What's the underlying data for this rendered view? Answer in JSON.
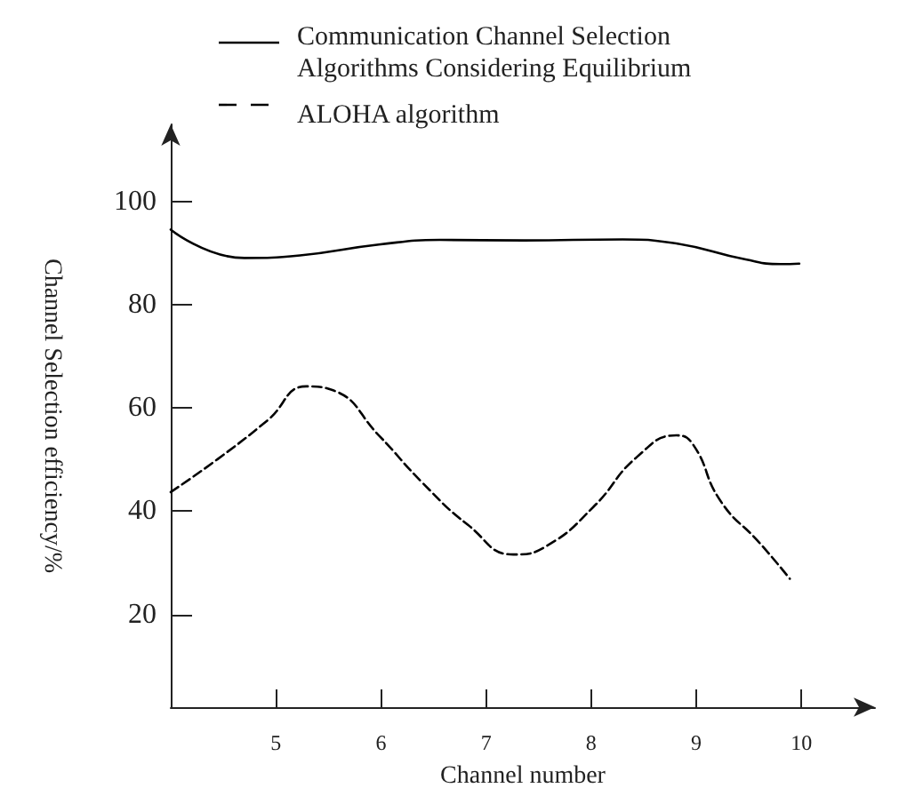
{
  "chart_data": {
    "type": "line",
    "xlabel": "Channel number",
    "ylabel": "Channel Selection efficiency/%",
    "xlim": [
      4,
      10.7
    ],
    "xticks": [
      5,
      6,
      7,
      8,
      9,
      10
    ],
    "ylim": [
      2,
      115
    ],
    "yticks": [
      20,
      40,
      60,
      80,
      100
    ],
    "grid": false,
    "legend": "top",
    "marker": "none",
    "series": [
      {
        "name": "Communication Channel Selection Algorithms Considering Equilibrium",
        "color": "#000000",
        "line_style": "solid",
        "x": [
          4.0,
          4.7,
          5.23,
          5.98,
          6.56,
          7.36,
          8.3,
          8.78,
          9.47,
          9.8,
          9.98
        ],
        "values": [
          94.6,
          89.1,
          89.6,
          91.7,
          92.6,
          92.5,
          92.7,
          92,
          88.8,
          87.9,
          88
        ]
      },
      {
        "name": "ALOHA algorithm",
        "color": "#000000",
        "line_style": "dashed",
        "x": [
          4.0,
          4.44,
          4.92,
          5.29,
          5.55,
          5.98,
          6.4,
          6.83,
          7.26,
          7.58,
          8.02,
          8.44,
          8.81,
          8.97,
          9.23,
          9.6,
          9.89
        ],
        "values": [
          43.7,
          50,
          57.6,
          64.2,
          63.4,
          54.7,
          45.4,
          37.3,
          31.6,
          33.3,
          40.8,
          50.6,
          54.7,
          52.9,
          42,
          33.9,
          26.9
        ]
      }
    ]
  }
}
